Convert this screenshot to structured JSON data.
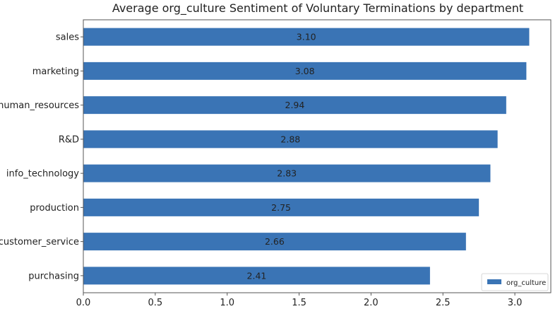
{
  "chart_data": {
    "type": "bar",
    "orientation": "horizontal",
    "title": "Average org_culture Sentiment of Voluntary Terminations by department",
    "xlabel": "",
    "ylabel": "",
    "categories": [
      "sales",
      "marketing",
      "human_resources",
      "R&D",
      "info_technology",
      "production",
      "customer_service",
      "purchasing"
    ],
    "series": [
      {
        "name": "org_culture",
        "values": [
          3.1,
          3.08,
          2.94,
          2.88,
          2.83,
          2.75,
          2.66,
          2.41
        ],
        "labels": [
          "3.10",
          "3.08",
          "2.94",
          "2.88",
          "2.83",
          "2.75",
          "2.66",
          "2.41"
        ],
        "color": "#3a74b5"
      }
    ],
    "xlim": [
      0,
      3.25
    ],
    "xticks": [
      0.0,
      0.5,
      1.0,
      1.5,
      2.0,
      2.5,
      3.0
    ],
    "xtick_labels": [
      "0.0",
      "0.5",
      "1.0",
      "1.5",
      "2.0",
      "2.5",
      "3.0"
    ],
    "grid": false,
    "legend_position": "bottom-right"
  },
  "colors": {
    "bar": "#3a74b5",
    "axis": "#555555",
    "text": "#222222"
  }
}
